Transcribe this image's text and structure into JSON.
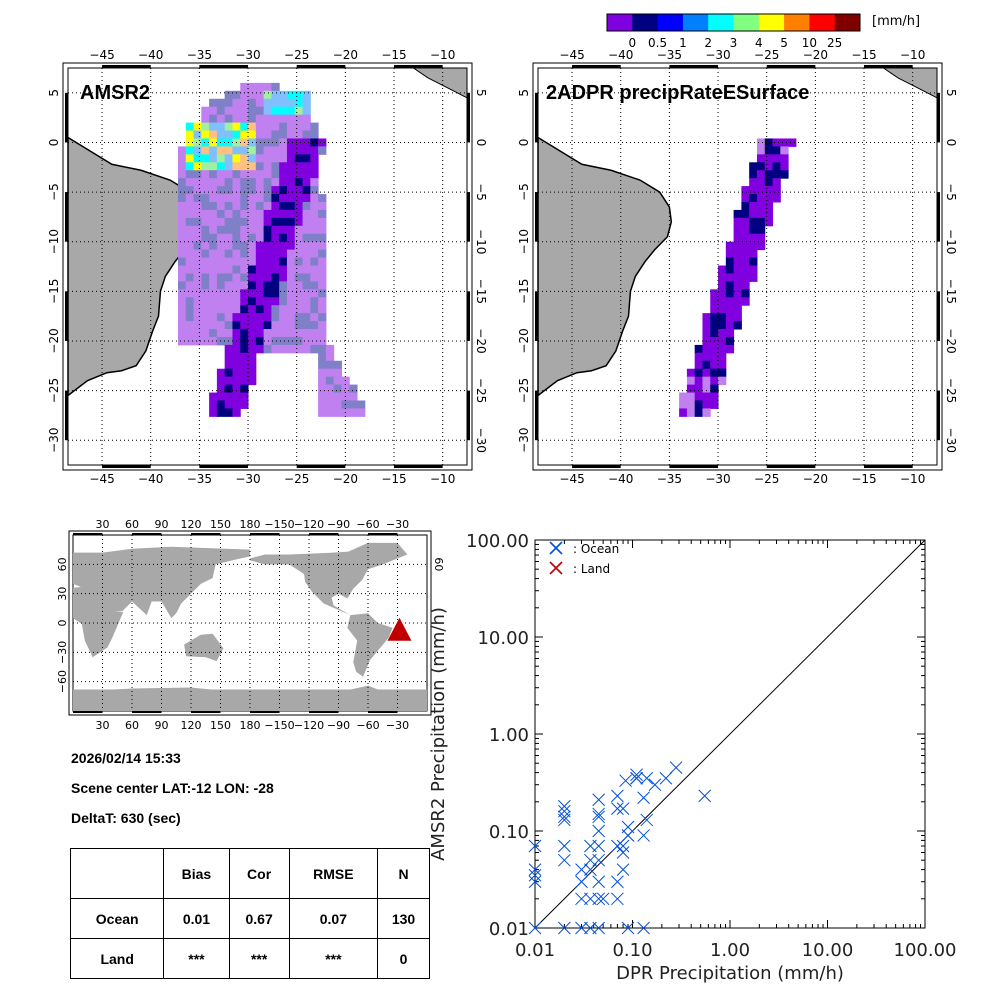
{
  "colorbar": {
    "unit": "[mm/h]",
    "colors": [
      "#8000e0",
      "#000080",
      "#0000ff",
      "#0080ff",
      "#00ffff",
      "#80ff80",
      "#ffff00",
      "#ff8000",
      "#ff0000",
      "#800000"
    ],
    "tick_labels": [
      "0",
      "0.5",
      "1",
      "2",
      "3",
      "4",
      "5",
      "10",
      "25"
    ]
  },
  "map_panels": [
    {
      "title": "AMSR2",
      "lon_ticks": [
        "-45",
        "-40",
        "-35",
        "-30",
        "-25",
        "-20",
        "-15",
        "-10"
      ],
      "lat_ticks": [
        "5",
        "0",
        "-5",
        "-10",
        "-15",
        "-20",
        "-25",
        "-30"
      ]
    },
    {
      "title": "2ADPR precipRateESurface",
      "lon_ticks": [
        "-45",
        "-40",
        "-35",
        "-30",
        "-25",
        "-20",
        "-15",
        "-10"
      ],
      "lat_ticks": [
        "5",
        "0",
        "-5",
        "-10",
        "-15",
        "-20",
        "-25",
        "-30"
      ]
    }
  ],
  "world_map": {
    "lon_ticks": [
      "30",
      "60",
      "90",
      "120",
      "150",
      "180",
      "-150",
      "-120",
      "-90",
      "-60",
      "-30"
    ],
    "lat_ticks_left": [
      "60",
      "30",
      "0",
      "-30",
      "-60"
    ],
    "lat_ticks_right": [
      "60"
    ],
    "marker": {
      "lat": -12,
      "lon": -28,
      "color": "#c00000",
      "shape": "triangle"
    }
  },
  "info": {
    "datetime": "2026/02/14 15:33",
    "scene_center": "Scene center LAT:-12   LON: -28",
    "delta_t": "DeltaT:  630 (sec)"
  },
  "stats_table": {
    "headers": [
      "",
      "Bias",
      "Cor",
      "RMSE",
      "N"
    ],
    "rows": [
      [
        "Ocean",
        "0.01",
        "0.67",
        "0.07",
        "130"
      ],
      [
        "Land",
        "***",
        "***",
        "***",
        "0"
      ]
    ]
  },
  "chart_data": {
    "type": "scatter",
    "title": "",
    "xlabel": "DPR Precipitation (mm/h)",
    "ylabel": "AMSR2 Precipitation (mm/h)",
    "xscale": "log",
    "yscale": "log",
    "xlim": [
      0.01,
      100
    ],
    "ylim": [
      0.01,
      100
    ],
    "x_tick_labels": [
      "0.01",
      "0.10",
      "1.00",
      "10.00",
      "100.00"
    ],
    "y_tick_labels": [
      "0.01",
      "0.10",
      "1.00",
      "10.00",
      "100.00"
    ],
    "legend": {
      "placement": "top-left",
      "entries": [
        {
          "label": ": Ocean",
          "color": "#0050e0"
        },
        {
          "label": ": Land",
          "color": "#c00000"
        }
      ]
    },
    "reference_line": "y = x",
    "series": [
      {
        "name": "Ocean",
        "color": "#0050e0",
        "marker": "x",
        "points": [
          [
            0.01,
            0.07
          ],
          [
            0.01,
            0.04
          ],
          [
            0.01,
            0.035
          ],
          [
            0.01,
            0.03
          ],
          [
            0.01,
            0.01
          ],
          [
            0.02,
            0.18
          ],
          [
            0.02,
            0.16
          ],
          [
            0.02,
            0.14
          ],
          [
            0.02,
            0.13
          ],
          [
            0.02,
            0.07
          ],
          [
            0.02,
            0.05
          ],
          [
            0.02,
            0.01
          ],
          [
            0.03,
            0.04
          ],
          [
            0.03,
            0.03
          ],
          [
            0.03,
            0.02
          ],
          [
            0.03,
            0.01
          ],
          [
            0.037,
            0.07
          ],
          [
            0.037,
            0.05
          ],
          [
            0.037,
            0.04
          ],
          [
            0.037,
            0.02
          ],
          [
            0.037,
            0.01
          ],
          [
            0.045,
            0.21
          ],
          [
            0.045,
            0.15
          ],
          [
            0.045,
            0.14
          ],
          [
            0.045,
            0.1
          ],
          [
            0.045,
            0.07
          ],
          [
            0.045,
            0.05
          ],
          [
            0.045,
            0.03
          ],
          [
            0.045,
            0.02
          ],
          [
            0.045,
            0.01
          ],
          [
            0.05,
            0.02
          ],
          [
            0.07,
            0.23
          ],
          [
            0.07,
            0.17
          ],
          [
            0.07,
            0.07
          ],
          [
            0.07,
            0.03
          ],
          [
            0.07,
            0.02
          ],
          [
            0.08,
            0.17
          ],
          [
            0.08,
            0.07
          ],
          [
            0.08,
            0.06
          ],
          [
            0.08,
            0.04
          ],
          [
            0.085,
            0.33
          ],
          [
            0.09,
            0.11
          ],
          [
            0.09,
            0.09
          ],
          [
            0.09,
            0.09
          ],
          [
            0.09,
            0.01
          ],
          [
            0.11,
            0.38
          ],
          [
            0.11,
            0.35
          ],
          [
            0.11,
            0.35
          ],
          [
            0.13,
            0.22
          ],
          [
            0.13,
            0.09
          ],
          [
            0.13,
            0.01
          ],
          [
            0.14,
            0.35
          ],
          [
            0.14,
            0.13
          ],
          [
            0.17,
            0.3
          ],
          [
            0.22,
            0.35
          ],
          [
            0.28,
            0.45
          ],
          [
            0.55,
            0.23
          ]
        ]
      },
      {
        "name": "Land",
        "color": "#c00000",
        "marker": "x",
        "points": []
      }
    ]
  }
}
